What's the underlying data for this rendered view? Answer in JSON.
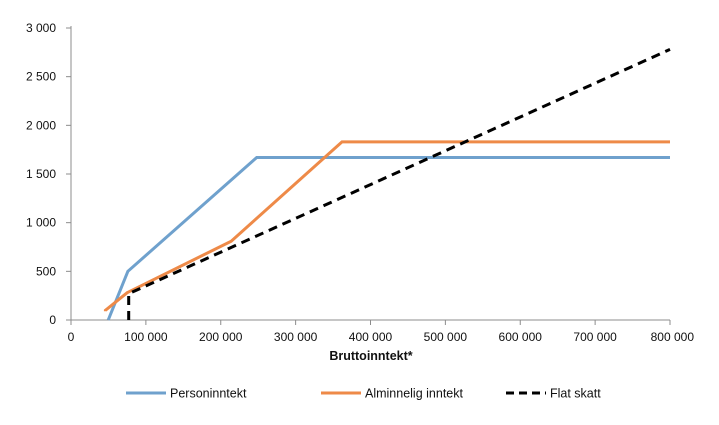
{
  "chart_data": {
    "type": "line",
    "title": "",
    "xlabel": "Bruttoinntekt*",
    "ylabel": "",
    "xlim": [
      0,
      800000
    ],
    "ylim": [
      0,
      3000
    ],
    "x_ticks": [
      0,
      100000,
      200000,
      300000,
      400000,
      500000,
      600000,
      700000,
      800000
    ],
    "x_tick_labels": [
      "0",
      "100 000",
      "200 000",
      "300 000",
      "400 000",
      "500 000",
      "600 000",
      "700 000",
      "800 000"
    ],
    "y_ticks": [
      0,
      500,
      1000,
      1500,
      2000,
      2500,
      3000
    ],
    "y_tick_labels": [
      "0",
      "500",
      "1 000",
      "1 500",
      "2 000",
      "2 500",
      "3 000"
    ],
    "grid": false,
    "legend_position": "bottom",
    "series": [
      {
        "name": "Personinntekt",
        "color": "#6fa1cd",
        "dash": "solid",
        "points": [
          [
            49650,
            0
          ],
          [
            76000,
            500
          ],
          [
            248000,
            1670
          ],
          [
            800000,
            1670
          ]
        ]
      },
      {
        "name": "Alminnelig inntekt",
        "color": "#ee8a48",
        "dash": "solid",
        "points": [
          [
            46000,
            90
          ],
          [
            46000,
            100
          ],
          [
            75000,
            280
          ],
          [
            214000,
            810
          ],
          [
            362000,
            1830
          ],
          [
            800000,
            1830
          ]
        ]
      },
      {
        "name": "Flat skatt",
        "color": "#000000",
        "dash": "dashed",
        "points": [
          [
            77000,
            0
          ],
          [
            77000,
            270
          ],
          [
            800000,
            2780
          ]
        ]
      }
    ]
  }
}
